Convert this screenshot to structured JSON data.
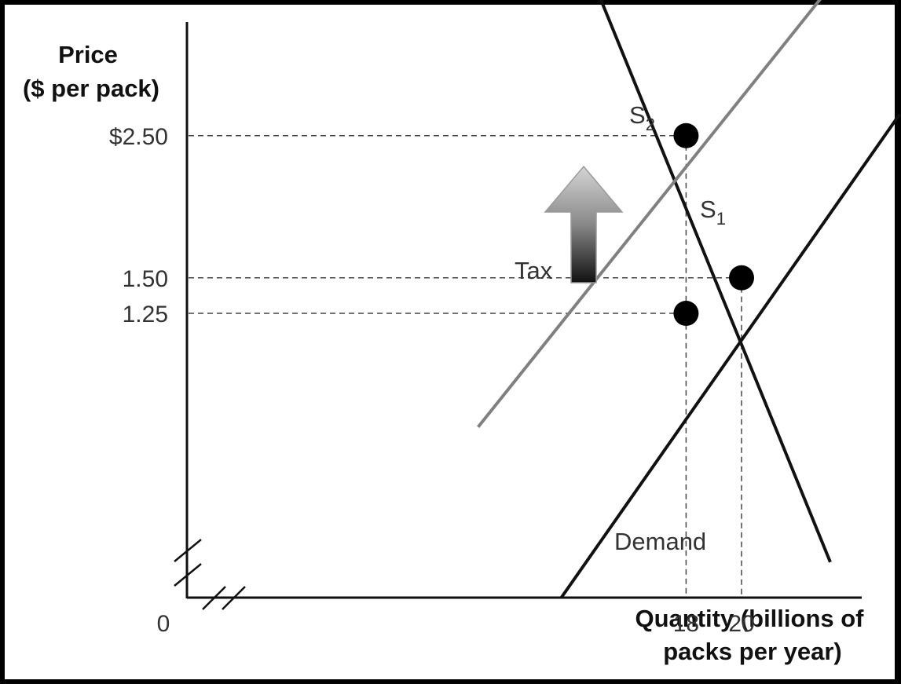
{
  "chart_data": {
    "type": "line",
    "ylabel_line1": "Price",
    "ylabel_line2": "($ per pack)",
    "xlabel_line1": "Quantity (billions of",
    "xlabel_line2": "packs per year)",
    "origin_label": "0",
    "y_ticks": [
      {
        "value": 2.5,
        "label": "$2.50"
      },
      {
        "value": 1.5,
        "label": "1.50"
      },
      {
        "value": 1.25,
        "label": "1.25"
      }
    ],
    "x_ticks": [
      {
        "value": 18,
        "label": "18"
      },
      {
        "value": 20,
        "label": "20"
      }
    ],
    "series": [
      {
        "name": "Demand",
        "color": "#111111",
        "points": [
          [
            14,
            3.9
          ],
          [
            23.2,
            -0.5
          ]
        ]
      },
      {
        "name": "S1",
        "name_base": "S",
        "name_sub": "1",
        "color": "#111111",
        "points": [
          [
            13.5,
            -0.75
          ],
          [
            25.7,
            2.65
          ]
        ]
      },
      {
        "name": "S2",
        "name_base": "S",
        "name_sub": "2",
        "color": "#808080",
        "points": [
          [
            10.5,
            0.45
          ],
          [
            23.0,
            3.5
          ]
        ]
      }
    ],
    "equilibrium_points": [
      {
        "x": 18,
        "y": 2.5
      },
      {
        "x": 20,
        "y": 1.5
      },
      {
        "x": 18,
        "y": 1.25
      }
    ],
    "guides": [
      {
        "from": [
          0,
          2.5
        ],
        "to": [
          18,
          2.5
        ]
      },
      {
        "from": [
          0,
          1.5
        ],
        "to": [
          20,
          1.5
        ]
      },
      {
        "from": [
          0,
          1.25
        ],
        "to": [
          18,
          1.25
        ]
      },
      {
        "from": [
          18,
          2.5
        ],
        "to": [
          18,
          -1.7
        ]
      },
      {
        "from": [
          20,
          1.5
        ],
        "to": [
          20,
          -1.7
        ]
      }
    ],
    "annotation": {
      "label": "Tax",
      "direction": "up"
    }
  }
}
